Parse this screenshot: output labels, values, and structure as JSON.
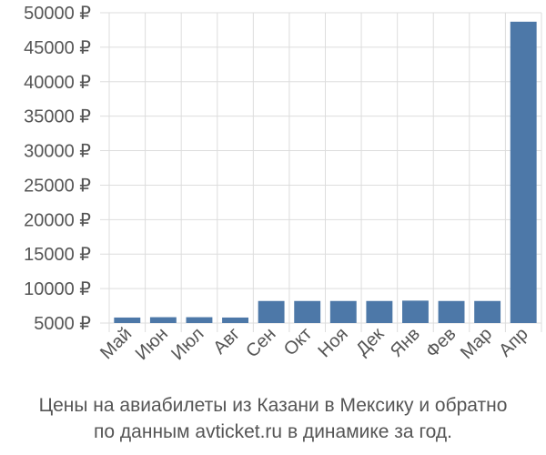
{
  "chart_data": {
    "type": "bar",
    "categories": [
      "Май",
      "Июн",
      "Июл",
      "Авг",
      "Сен",
      "Окт",
      "Ноя",
      "Дек",
      "Янв",
      "Фев",
      "Мар",
      "Апр"
    ],
    "values": [
      5800,
      5850,
      5850,
      5800,
      8200,
      8200,
      8200,
      8200,
      8250,
      8200,
      8200,
      48700
    ],
    "y_ticks": [
      "5000 ₽",
      "10000 ₽",
      "15000 ₽",
      "20000 ₽",
      "25000 ₽",
      "30000 ₽",
      "35000 ₽",
      "40000 ₽",
      "45000 ₽",
      "50000 ₽"
    ],
    "y_tick_values": [
      5000,
      10000,
      15000,
      20000,
      25000,
      30000,
      35000,
      40000,
      45000,
      50000
    ],
    "ylim": [
      5000,
      50000
    ],
    "grid": true,
    "bar_color": "#4d78a8",
    "grid_color": "#dddddd",
    "title": "",
    "xlabel": "",
    "ylabel": ""
  },
  "caption": {
    "line1": "Цены на авиабилеты из Казани в Мексику и обратно",
    "line2": "по данным avticket.ru в динамике за год."
  }
}
